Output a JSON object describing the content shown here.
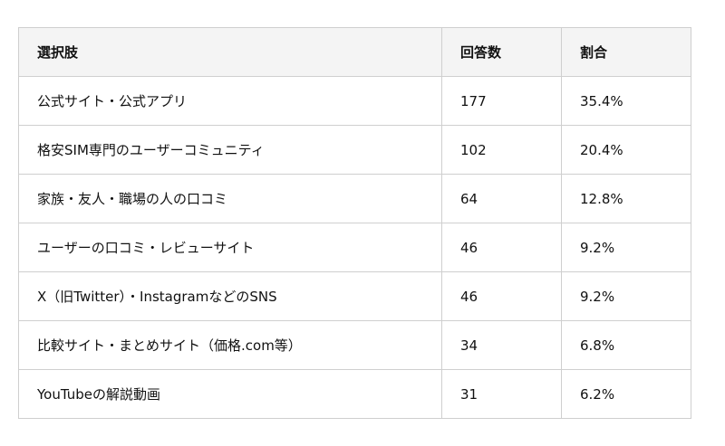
{
  "table": {
    "headers": [
      "選択肢",
      "回答数",
      "割合"
    ],
    "rows": [
      [
        "公式サイト・公式アプリ",
        "177",
        "35.4%"
      ],
      [
        "格安SIM専門のユーザーコミュニティ",
        "102",
        "20.4%"
      ],
      [
        "家族・友人・職場の人の口コミ",
        "64",
        "12.8%"
      ],
      [
        "ユーザーの口コミ・レビューサイト",
        "46",
        "9.2%"
      ],
      [
        "X（旧Twitter）・InstagramなどのSNS",
        "46",
        "9.2%"
      ],
      [
        "比較サイト・まとめサイト（価格.com等）",
        "34",
        "6.8%"
      ],
      [
        "YouTubeの解説動画",
        "31",
        "6.2%"
      ]
    ]
  }
}
